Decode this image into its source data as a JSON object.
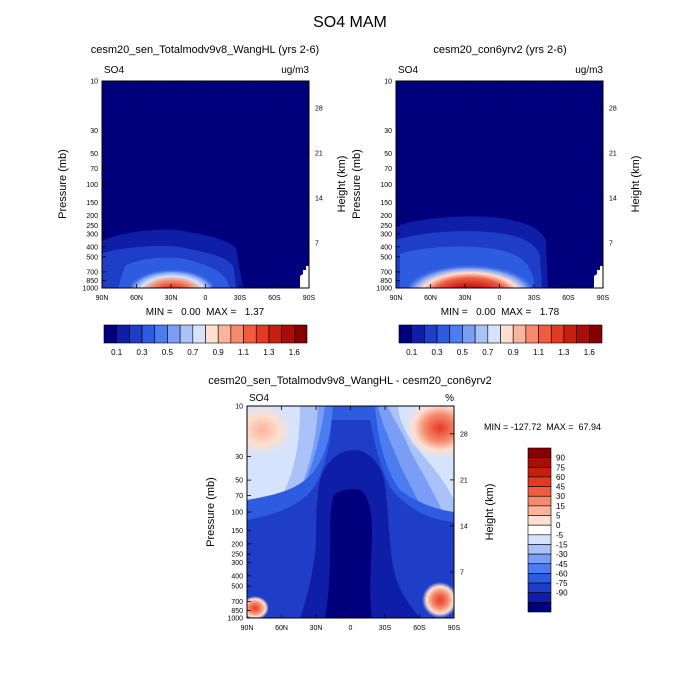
{
  "figure_title": "SO4 MAM",
  "panels": [
    {
      "title": "cesm20_sen_Totalmodv9v8_WangHL (yrs 2-6)",
      "var_label": "SO4",
      "units": "ug/m3",
      "stats": "MIN =   0.00  MAX =   1.37"
    },
    {
      "title": "cesm20_con6yrv2 (yrs 2-6)",
      "var_label": "SO4",
      "units": "ug/m3",
      "stats": "MIN =   0.00  MAX =   1.78"
    },
    {
      "title": "cesm20_sen_Totalmodv9v8_WangHL - cesm20_con6yrv2",
      "var_label": "SO4",
      "units": "%",
      "stats": "MIN = -127.72  MAX =  67.94"
    }
  ],
  "axis_labels": {
    "pressure": "Pressure (mb)",
    "height": "Height (km)"
  },
  "chart_data": [
    {
      "type": "heatmap",
      "title": "cesm20_sen_Totalmodv9v8_WangHL (yrs 2-6)",
      "x_ticks": [
        "90N",
        "60N",
        "30N",
        "0",
        "30S",
        "60S",
        "90S"
      ],
      "x_values": [
        90,
        60,
        30,
        0,
        -30,
        -60,
        -90
      ],
      "y_ticks": [
        "10",
        "30",
        "50",
        "70",
        "100",
        "150",
        "200",
        "250",
        "300",
        "400",
        "500",
        "700",
        "850",
        "1000"
      ],
      "y_values": [
        10,
        30,
        50,
        70,
        100,
        150,
        200,
        250,
        300,
        400,
        500,
        700,
        850,
        1000
      ],
      "y2_ticks": [
        "28",
        "21",
        "14",
        "7"
      ],
      "y2_values_km": [
        28,
        21,
        14,
        7
      ],
      "ylim_mb": [
        10,
        1000
      ],
      "min": 0.0,
      "max": 1.37,
      "peak": {
        "lat": 28,
        "pressure": 900,
        "value": 1.37
      },
      "units": "ug/m3"
    },
    {
      "type": "heatmap",
      "title": "cesm20_con6yrv2 (yrs 2-6)",
      "x_ticks": [
        "90N",
        "60N",
        "30N",
        "0",
        "30S",
        "60S",
        "90S"
      ],
      "x_values": [
        90,
        60,
        30,
        0,
        -30,
        -60,
        -90
      ],
      "y_ticks": [
        "10",
        "30",
        "50",
        "70",
        "100",
        "150",
        "200",
        "250",
        "300",
        "400",
        "500",
        "700",
        "850",
        "1000"
      ],
      "y_values": [
        10,
        30,
        50,
        70,
        100,
        150,
        200,
        250,
        300,
        400,
        500,
        700,
        850,
        1000
      ],
      "y2_ticks": [
        "28",
        "21",
        "14",
        "7"
      ],
      "y2_values_km": [
        28,
        21,
        14,
        7
      ],
      "ylim_mb": [
        10,
        1000
      ],
      "min": 0.0,
      "max": 1.78,
      "peak": {
        "lat": 30,
        "pressure": 900,
        "value": 1.78
      },
      "units": "ug/m3"
    },
    {
      "type": "heatmap",
      "title": "cesm20_sen_Totalmodv9v8_WangHL - cesm20_con6yrv2",
      "x_ticks": [
        "90N",
        "60N",
        "30N",
        "0",
        "30S",
        "60S",
        "90S"
      ],
      "x_values": [
        90,
        60,
        30,
        0,
        -30,
        -60,
        -90
      ],
      "y_ticks": [
        "10",
        "30",
        "50",
        "70",
        "100",
        "150",
        "200",
        "250",
        "300",
        "400",
        "500",
        "700",
        "850",
        "1000"
      ],
      "y_values": [
        10,
        30,
        50,
        70,
        100,
        150,
        200,
        250,
        300,
        400,
        500,
        700,
        850,
        1000
      ],
      "y2_ticks": [
        "28",
        "21",
        "14",
        "7"
      ],
      "y2_values_km": [
        28,
        21,
        14,
        7
      ],
      "ylim_mb": [
        10,
        1000
      ],
      "min": -127.72,
      "max": 67.94,
      "units": "%"
    }
  ],
  "colorbar_abs": {
    "labels": [
      "0.1",
      "0.3",
      "0.5",
      "0.7",
      "0.9",
      "1.1",
      "1.3",
      "1.6"
    ],
    "colors": [
      "#00007d",
      "#0f1ea6",
      "#1e3ec8",
      "#2e5ce0",
      "#4b7cf0",
      "#7a9ef5",
      "#a9c2f8",
      "#d6e3fc",
      "#fde0d0",
      "#f9b49a",
      "#f58a6c",
      "#ef5c40",
      "#e23a23",
      "#c71e12",
      "#a80d08",
      "#860000"
    ]
  },
  "colorbar_diff": {
    "labels": [
      "90",
      "75",
      "60",
      "45",
      "30",
      "15",
      "5",
      "0",
      "-5",
      "-15",
      "-30",
      "-45",
      "-60",
      "-75",
      "-90"
    ],
    "colors": [
      "#860000",
      "#a80d08",
      "#c71e12",
      "#e23a23",
      "#ef5c40",
      "#f58a6c",
      "#f9b49a",
      "#fde0d0",
      "#ffffff",
      "#d6e3fc",
      "#a9c2f8",
      "#7a9ef5",
      "#4b7cf0",
      "#2e5ce0",
      "#1e3ec8",
      "#0f1ea6",
      "#00007d"
    ]
  }
}
